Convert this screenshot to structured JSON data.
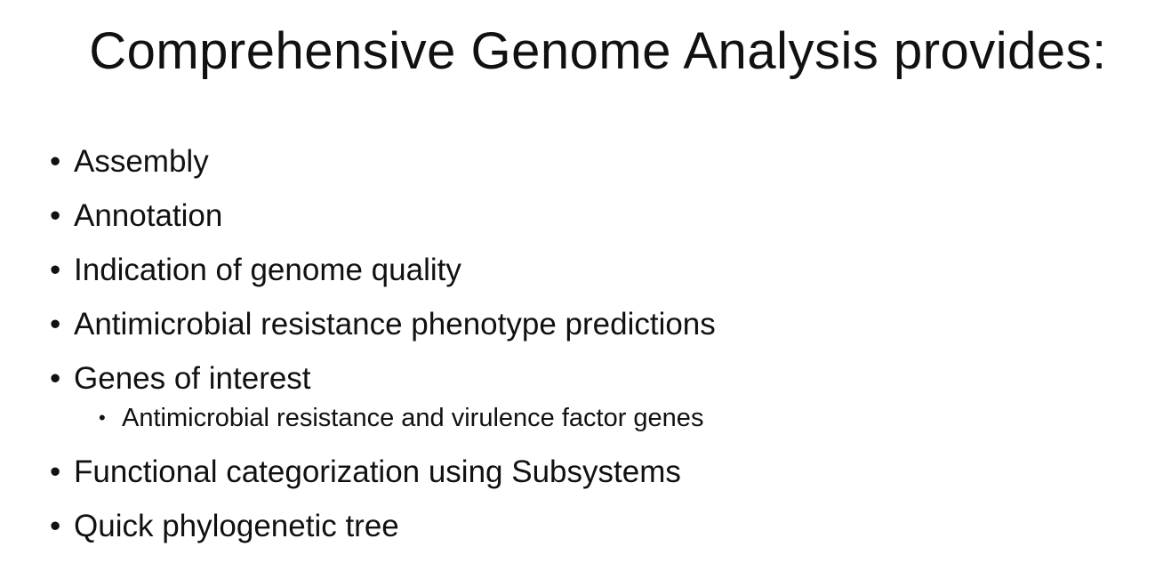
{
  "slide": {
    "title": "Comprehensive Genome Analysis provides:",
    "items": [
      {
        "text": "Assembly"
      },
      {
        "text": "Annotation"
      },
      {
        "text": "Indication of genome quality"
      },
      {
        "text": "Antimicrobial resistance phenotype predictions"
      },
      {
        "text": "Genes of interest"
      },
      {
        "text": "Functional categorization using Subsystems"
      },
      {
        "text": "Quick phylogenetic tree"
      }
    ],
    "subitems": [
      {
        "text": "Antimicrobial resistance and virulence factor genes"
      }
    ],
    "bullet_glyph": "•"
  }
}
